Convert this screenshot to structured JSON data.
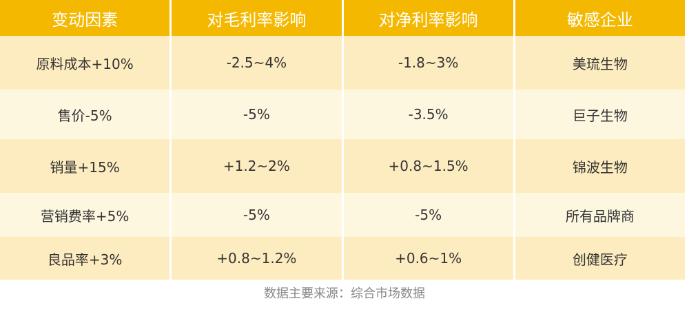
{
  "table": {
    "header": [
      "变动因素",
      "对毛利率影响",
      "对净利率影响",
      "敏感企业"
    ],
    "rows": [
      [
        "原料成本+10%",
        "-2.5~4%",
        "-1.8~3%",
        "美琉生物"
      ],
      [
        "售价-5%",
        "-5%",
        "-3.5%",
        "巨子生物"
      ],
      [
        "销量+15%",
        "+1.2~2%",
        "+0.8~1.5%",
        "锦波生物"
      ],
      [
        "营销费率+5%",
        "-5%",
        "-5%",
        "所有品牌商"
      ],
      [
        "良品率+3%",
        "+0.8~1.2%",
        "+0.6~1%",
        "创健医疗"
      ]
    ]
  },
  "source": "数据主要来源：综合市场数据"
}
